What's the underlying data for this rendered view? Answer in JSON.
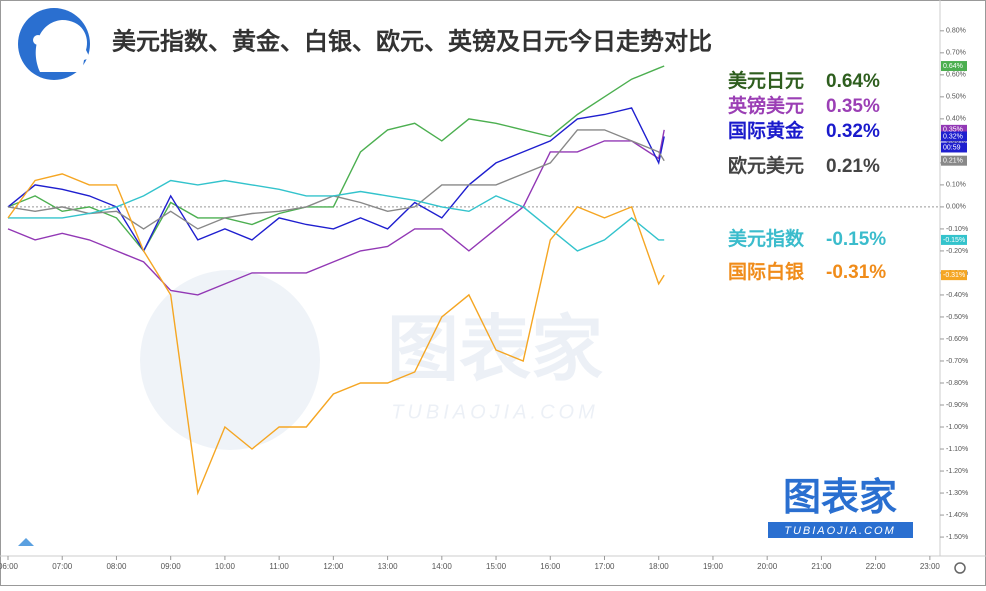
{
  "chart_data": {
    "type": "line",
    "title": "美元指数、黄金、白银、欧元、英镑及日元今日走势对比",
    "watermark": "图表家",
    "watermark_sub": "TUBIAOJIA.COM",
    "countdown": "00:59",
    "xlim": [
      6,
      23.15
    ],
    "ylim": [
      -1.586,
      0.94
    ],
    "xticks": [
      {
        "value": 6,
        "label": "06:00"
      },
      {
        "value": 7,
        "label": "07:00"
      },
      {
        "value": 8,
        "label": "08:00"
      },
      {
        "value": 9,
        "label": "09:00"
      },
      {
        "value": 10,
        "label": "10:00"
      },
      {
        "value": 11,
        "label": "11:00"
      },
      {
        "value": 12,
        "label": "12:00"
      },
      {
        "value": 13,
        "label": "13:00"
      },
      {
        "value": 14,
        "label": "14:00"
      },
      {
        "value": 15,
        "label": "15:00"
      },
      {
        "value": 16,
        "label": "16:00"
      },
      {
        "value": 17,
        "label": "17:00"
      },
      {
        "value": 18,
        "label": "18:00"
      },
      {
        "value": 19,
        "label": "19:00"
      },
      {
        "value": 20,
        "label": "20:00"
      },
      {
        "value": 21,
        "label": "21:00"
      },
      {
        "value": 22,
        "label": "22:00"
      },
      {
        "value": 23,
        "label": "23:00"
      }
    ],
    "yticks": [
      {
        "value": 0.8,
        "label": "0.80%"
      },
      {
        "value": 0.7,
        "label": "0.70%"
      },
      {
        "value": 0.6,
        "label": "0.60%"
      },
      {
        "value": 0.5,
        "label": "0.50%"
      },
      {
        "value": 0.4,
        "label": "0.40%"
      },
      {
        "value": 0.3,
        "label": "0.30%"
      },
      {
        "value": 0.2,
        "label": "0.20%"
      },
      {
        "value": 0.1,
        "label": "0.10%"
      },
      {
        "value": 0,
        "label": "0.00%"
      },
      {
        "value": -0.1,
        "label": "-0.10%"
      },
      {
        "value": -0.2,
        "label": "-0.20%"
      },
      {
        "value": -0.3,
        "label": "-0.30%"
      },
      {
        "value": -0.4,
        "label": "-0.40%"
      },
      {
        "value": -0.5,
        "label": "-0.50%"
      },
      {
        "value": -0.6,
        "label": "-0.60%"
      },
      {
        "value": -0.7,
        "label": "-0.70%"
      },
      {
        "value": -0.8,
        "label": "-0.80%"
      },
      {
        "value": -0.9,
        "label": "-0.90%"
      },
      {
        "value": -1.0,
        "label": "-1.00%"
      },
      {
        "value": -1.1,
        "label": "-1.10%"
      },
      {
        "value": -1.2,
        "label": "-1.20%"
      },
      {
        "value": -1.3,
        "label": "-1.30%"
      },
      {
        "value": -1.4,
        "label": "-1.40%"
      },
      {
        "value": -1.5,
        "label": "-1.50%"
      }
    ],
    "x": [
      6,
      6.5,
      7,
      7.5,
      8,
      8.5,
      9,
      9.5,
      10,
      10.5,
      11,
      11.5,
      12,
      12.5,
      13,
      13.5,
      14,
      14.5,
      15,
      15.5,
      16,
      16.5,
      17,
      17.5,
      18,
      18.1
    ],
    "series": [
      {
        "name": "美元日元",
        "color": "#4caf50",
        "text_color": "#2e5e1e",
        "end_label": {
          "value": 0.64,
          "label": "0.64%"
        },
        "values": [
          0,
          0.05,
          -0.02,
          0.0,
          -0.05,
          -0.2,
          0.02,
          -0.05,
          -0.05,
          -0.08,
          -0.03,
          0.0,
          0.0,
          0.25,
          0.35,
          0.38,
          0.3,
          0.4,
          0.38,
          0.35,
          0.32,
          0.42,
          0.5,
          0.58,
          0.63,
          0.64
        ]
      },
      {
        "name": "英镑美元",
        "color": "#9238b5",
        "text_color": "#9b3fb5",
        "end_label": {
          "value": 0.35,
          "label": "0.35%"
        },
        "values": [
          -0.1,
          -0.15,
          -0.12,
          -0.15,
          -0.2,
          -0.25,
          -0.38,
          -0.4,
          -0.35,
          -0.3,
          -0.3,
          -0.3,
          -0.25,
          -0.2,
          -0.18,
          -0.1,
          -0.1,
          -0.2,
          -0.1,
          0.0,
          0.25,
          0.25,
          0.3,
          0.3,
          0.22,
          0.35
        ]
      },
      {
        "name": "国际黄金",
        "color": "#1f1fcf",
        "text_color": "#1a1acc",
        "end_label": {
          "value": 0.32,
          "label": "0.32%"
        },
        "values": [
          0,
          0.1,
          0.08,
          0.05,
          0.0,
          -0.2,
          0.05,
          -0.15,
          -0.1,
          -0.15,
          -0.05,
          -0.08,
          -0.1,
          -0.05,
          -0.1,
          0.02,
          -0.05,
          0.1,
          0.2,
          0.25,
          0.3,
          0.4,
          0.42,
          0.45,
          0.2,
          0.32
        ]
      },
      {
        "name": "欧元美元",
        "color": "#888888",
        "text_color": "#444444",
        "end_label": {
          "value": 0.21,
          "label": "0.21%"
        },
        "values": [
          0,
          -0.02,
          0.0,
          -0.03,
          -0.02,
          -0.1,
          -0.02,
          -0.1,
          -0.05,
          -0.03,
          -0.02,
          0.0,
          0.05,
          0.02,
          -0.02,
          0.0,
          0.1,
          0.1,
          0.1,
          0.15,
          0.2,
          0.35,
          0.35,
          0.3,
          0.25,
          0.21
        ]
      },
      {
        "name": "美元指数",
        "color": "#33c3cc",
        "text_color": "#3bbccc",
        "end_label": {
          "value": -0.15,
          "label": "-0.15%"
        },
        "values": [
          -0.05,
          -0.05,
          -0.05,
          -0.03,
          0.0,
          0.05,
          0.12,
          0.1,
          0.12,
          0.1,
          0.08,
          0.05,
          0.05,
          0.07,
          0.05,
          0.03,
          0.0,
          -0.02,
          0.05,
          0.0,
          -0.1,
          -0.2,
          -0.15,
          -0.05,
          -0.15,
          -0.15
        ]
      },
      {
        "name": "国际白银",
        "color": "#f5a623",
        "text_color": "#f08c1a",
        "end_label": {
          "value": -0.31,
          "label": "-0.31%"
        },
        "values": [
          -0.05,
          0.12,
          0.15,
          0.1,
          0.1,
          -0.2,
          -0.4,
          -1.3,
          -1.0,
          -1.1,
          -1.0,
          -1.0,
          -0.85,
          -0.8,
          -0.8,
          -0.75,
          -0.5,
          -0.4,
          -0.65,
          -0.7,
          -0.15,
          0.0,
          -0.05,
          0.0,
          -0.35,
          -0.31
        ]
      }
    ]
  }
}
